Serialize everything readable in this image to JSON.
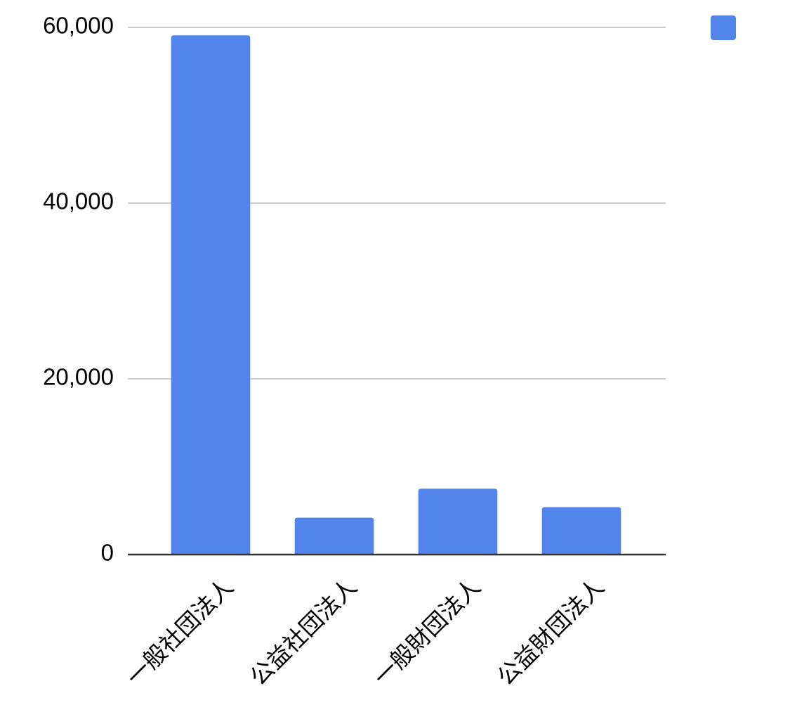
{
  "chart_data": {
    "type": "bar",
    "categories": [
      "一般社団法人",
      "公益社団法人",
      "一般財団法人",
      "公益財団法人"
    ],
    "values": [
      59100,
      4200,
      7500,
      5400
    ],
    "color": "#5185ec",
    "ylim": [
      0,
      60000
    ],
    "yticks": [
      0,
      {
        "value": 20000,
        "label": "20,000"
      },
      {
        "value": 40000,
        "label": "40,000"
      },
      {
        "value": 60000,
        "label": "60,000"
      }
    ],
    "grid": true,
    "legend": "top-right"
  }
}
